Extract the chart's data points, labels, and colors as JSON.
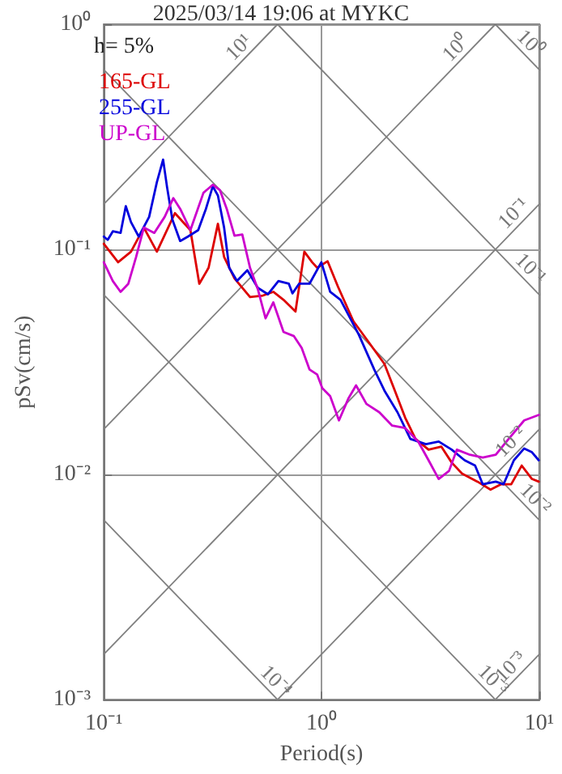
{
  "chart_data": {
    "type": "line",
    "title": "2025/03/14 19:06 at MYKC",
    "xlabel": "Period(s)",
    "ylabel": "pSv(cm/s)",
    "log": "xy",
    "grid": true,
    "legend": "top left",
    "marker": "none",
    "line_style": "solid",
    "xlim": [
      0.1,
      10
    ],
    "xticks": [
      {
        "value": 0.1,
        "label": "10⁻¹"
      },
      {
        "value": 1,
        "label": "10⁰"
      },
      {
        "value": 10,
        "label": "10¹"
      }
    ],
    "ylim": [
      0.001,
      1
    ],
    "yticks": [
      {
        "value": 0.001,
        "label": "10⁻³"
      },
      {
        "value": 0.01,
        "label": "10⁻²"
      },
      {
        "value": 0.1,
        "label": "10⁻¹"
      },
      {
        "value": 1,
        "label": "10⁰"
      }
    ],
    "annotations": [
      "h= 5%",
      {
        "text": "10¹",
        "x": 0.456,
        "y": 0.726
      },
      {
        "text": "10⁰",
        "x": 4.54,
        "y": 0.7226
      },
      {
        "text": "10⁰",
        "x": 8.34,
        "y": 0.753
      },
      {
        "text": "10⁻¹",
        "x": 8.34,
        "y": 0.1327
      },
      {
        "text": "10⁻¹",
        "x": 8.34,
        "y": 0.0753
      },
      {
        "text": "10⁻²",
        "x": 8.07,
        "y": 0.01284
      },
      {
        "text": "10⁻²",
        "x": 8.77,
        "y": 0.00716
      },
      {
        "text": "10⁻⁴",
        "x": 0.565,
        "y": 0.00111
      },
      {
        "text": "10⁻³",
        "x": 5.61,
        "y": 0.00112
      },
      {
        "text": "10⁻³",
        "x": 8.07,
        "y": 0.001284
      }
    ],
    "series": [
      {
        "color": "#808080",
        "x": [
          0.1,
          0.628
        ],
        "values": [
          0.159,
          1
        ]
      },
      {
        "color": "#808080",
        "x": [
          0.1,
          6.28
        ],
        "values": [
          0.0159,
          1
        ]
      },
      {
        "color": "#808080",
        "x": [
          0.1,
          10
        ],
        "values": [
          0.00159,
          0.159
        ]
      },
      {
        "color": "#808080",
        "x": [
          0.628,
          10
        ],
        "values": [
          0.001,
          0.0159
        ]
      },
      {
        "color": "#808080",
        "x": [
          6.28,
          10
        ],
        "values": [
          0.001,
          0.00159
        ]
      },
      {
        "color": "#808080",
        "x": [
          6.28,
          10
        ],
        "values": [
          1,
          0.628
        ]
      },
      {
        "color": "#808080",
        "x": [
          0.628,
          10
        ],
        "values": [
          1,
          0.0628
        ]
      },
      {
        "color": "#808080",
        "x": [
          0.1,
          10
        ],
        "values": [
          0.628,
          0.00628
        ]
      },
      {
        "color": "#808080",
        "x": [
          0.1,
          6.28
        ],
        "values": [
          0.0628,
          0.001
        ]
      },
      {
        "color": "#808080",
        "x": [
          0.1,
          0.628
        ],
        "values": [
          0.00628,
          0.001
        ]
      },
      {
        "name": "165-GL",
        "color": "#dd0000",
        "x": [
          0.1,
          0.1163,
          0.1333,
          0.1527,
          0.1753,
          0.2121,
          0.2498,
          0.2745,
          0.3028,
          0.3342,
          0.3568,
          0.3982,
          0.4693,
          0.5378,
          0.6004,
          0.6688,
          0.759,
          0.8335,
          0.905,
          0.955,
          1.066,
          1.188,
          1.4,
          1.65,
          1.944,
          2.17,
          2.42,
          2.7,
          3.1,
          3.55,
          3.96,
          4.42,
          5.2,
          5.97,
          6.66,
          7.43,
          8.3,
          9.25,
          9.94
        ],
        "values": [
          0.106,
          0.0877,
          0.0977,
          0.125,
          0.0977,
          0.1449,
          0.1218,
          0.0704,
          0.0829,
          0.13,
          0.0926,
          0.0744,
          0.0614,
          0.0624,
          0.0648,
          0.0597,
          0.053,
          0.0977,
          0.0877,
          0.0829,
          0.0886,
          0.0685,
          0.048,
          0.0386,
          0.031,
          0.0236,
          0.0179,
          0.0144,
          0.0129,
          0.0133,
          0.0113,
          0.0101,
          0.0093,
          0.00857,
          0.00905,
          0.00905,
          0.01096,
          0.00956,
          0.0093
        ]
      },
      {
        "name": "255-GL",
        "color": "#0000dd",
        "x": [
          0.1,
          0.1042,
          0.11,
          0.1194,
          0.1262,
          0.1333,
          0.1447,
          0.1615,
          0.1753,
          0.1872,
          0.1953,
          0.2065,
          0.2242,
          0.2433,
          0.2713,
          0.2944,
          0.3165,
          0.3342,
          0.3568,
          0.3766,
          0.4089,
          0.4563,
          0.5094,
          0.5675,
          0.6337,
          0.7075,
          0.7349,
          0.7885,
          0.88,
          0.998,
          1.095,
          1.222,
          1.481,
          1.745,
          1.944,
          2.232,
          2.557,
          3.013,
          3.453,
          3.96,
          4.54,
          5.07,
          5.5,
          6.31,
          6.85,
          7.64,
          8.52,
          9.25,
          9.94
        ],
        "values": [
          0.114,
          0.1103,
          0.1203,
          0.1184,
          0.1557,
          0.1322,
          0.114,
          0.1395,
          0.1992,
          0.2506,
          0.1884,
          0.1357,
          0.109,
          0.114,
          0.1218,
          0.1514,
          0.1906,
          0.1735,
          0.125,
          0.0829,
          0.0724,
          0.0808,
          0.0675,
          0.0632,
          0.0724,
          0.0704,
          0.0638,
          0.0704,
          0.0704,
          0.0877,
          0.0648,
          0.0597,
          0.0419,
          0.0293,
          0.0236,
          0.0189,
          0.0144,
          0.01364,
          0.01402,
          0.0129,
          0.01157,
          0.01096,
          0.00905,
          0.0093,
          0.00905,
          0.01157,
          0.01306,
          0.01256,
          0.01157
        ]
      },
      {
        "name": "UP-GL",
        "color": "#cc00cc",
        "x": [
          0.1,
          0.11,
          0.1194,
          0.1296,
          0.1407,
          0.1527,
          0.1705,
          0.1903,
          0.2086,
          0.2242,
          0.2498,
          0.2868,
          0.3165,
          0.3414,
          0.3668,
          0.3982,
          0.4324,
          0.4693,
          0.5094,
          0.553,
          0.6004,
          0.6688,
          0.7466,
          0.8104,
          0.88,
          0.955,
          1.008,
          1.095,
          1.202,
          1.326,
          1.44,
          1.607,
          1.842,
          2.11,
          2.42,
          2.78,
          3.1,
          3.45,
          3.85,
          4.18,
          4.8,
          5.5,
          6.31,
          7.23,
          8.52,
          9.94
        ],
        "values": [
          0.0877,
          0.0724,
          0.0648,
          0.0704,
          0.0926,
          0.125,
          0.1184,
          0.1395,
          0.169,
          0.1514,
          0.1218,
          0.1785,
          0.1937,
          0.1835,
          0.1514,
          0.1151,
          0.1165,
          0.0829,
          0.0667,
          0.0494,
          0.0582,
          0.043,
          0.0412,
          0.0365,
          0.0293,
          0.0278,
          0.0242,
          0.0223,
          0.0174,
          0.0217,
          0.0249,
          0.0206,
          0.0189,
          0.0165,
          0.0161,
          0.014,
          0.01157,
          0.00956,
          0.01038,
          0.0129,
          0.01224,
          0.0119,
          0.01224,
          0.0144,
          0.0174,
          0.0184
        ]
      }
    ]
  }
}
